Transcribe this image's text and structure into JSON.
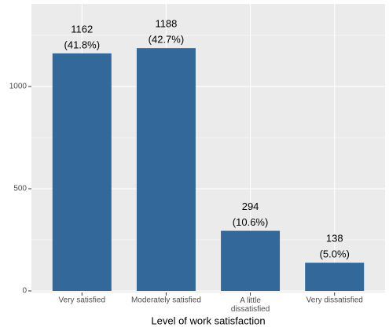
{
  "chart_data": {
    "type": "bar",
    "categories": [
      "Very satisfied",
      "Moderately satisfied",
      "A little\ndissatisfied",
      "Very dissatisfied"
    ],
    "values": [
      1162,
      1188,
      294,
      138
    ],
    "value_labels": [
      "1162",
      "1188",
      "294",
      "138"
    ],
    "percent_labels": [
      "(41.8%)",
      "(42.7%)",
      "(10.6%)",
      "(5.0%)"
    ],
    "color": "#33689a",
    "x_label": "Level of work satisfaction",
    "ylim": [
      0,
      1404
    ],
    "yticks": [
      0,
      500,
      1000
    ],
    "minor_yticks": [
      250,
      750,
      1250
    ],
    "grid": true
  }
}
